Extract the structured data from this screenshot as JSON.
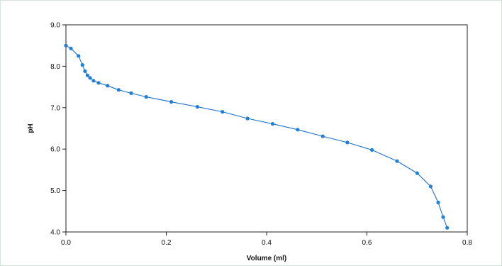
{
  "chart_data": {
    "type": "line",
    "title": "",
    "xlabel": "Volume (ml)",
    "ylabel": "pH",
    "xlim": [
      0.0,
      0.8
    ],
    "ylim": [
      4.0,
      9.0
    ],
    "x_ticks": [
      0.0,
      0.2,
      0.4,
      0.6,
      0.8
    ],
    "y_ticks": [
      4.0,
      5.0,
      6.0,
      7.0,
      8.0,
      9.0
    ],
    "x_tick_labels": [
      "0.0",
      "0.2",
      "0.4",
      "0.6",
      "0.8"
    ],
    "y_tick_labels": [
      "4.0",
      "5.0",
      "6.0",
      "7.0",
      "8.0",
      "9.0"
    ],
    "grid": false,
    "line_color": "#1f6fc9",
    "marker_color": "#1f7fd9",
    "series": [
      {
        "x": [
          0.0,
          0.01,
          0.025,
          0.033,
          0.038,
          0.043,
          0.048,
          0.055,
          0.065,
          0.083,
          0.105,
          0.13,
          0.16,
          0.21,
          0.262,
          0.312,
          0.362,
          0.412,
          0.462,
          0.512,
          0.561,
          0.61,
          0.66,
          0.7,
          0.727,
          0.742,
          0.752,
          0.76
        ],
        "y": [
          8.5,
          8.43,
          8.25,
          8.03,
          7.88,
          7.78,
          7.72,
          7.65,
          7.6,
          7.53,
          7.43,
          7.35,
          7.26,
          7.14,
          7.02,
          6.9,
          6.74,
          6.61,
          6.47,
          6.31,
          6.16,
          5.98,
          5.71,
          5.42,
          5.1,
          4.71,
          4.36,
          4.1
        ]
      }
    ]
  }
}
